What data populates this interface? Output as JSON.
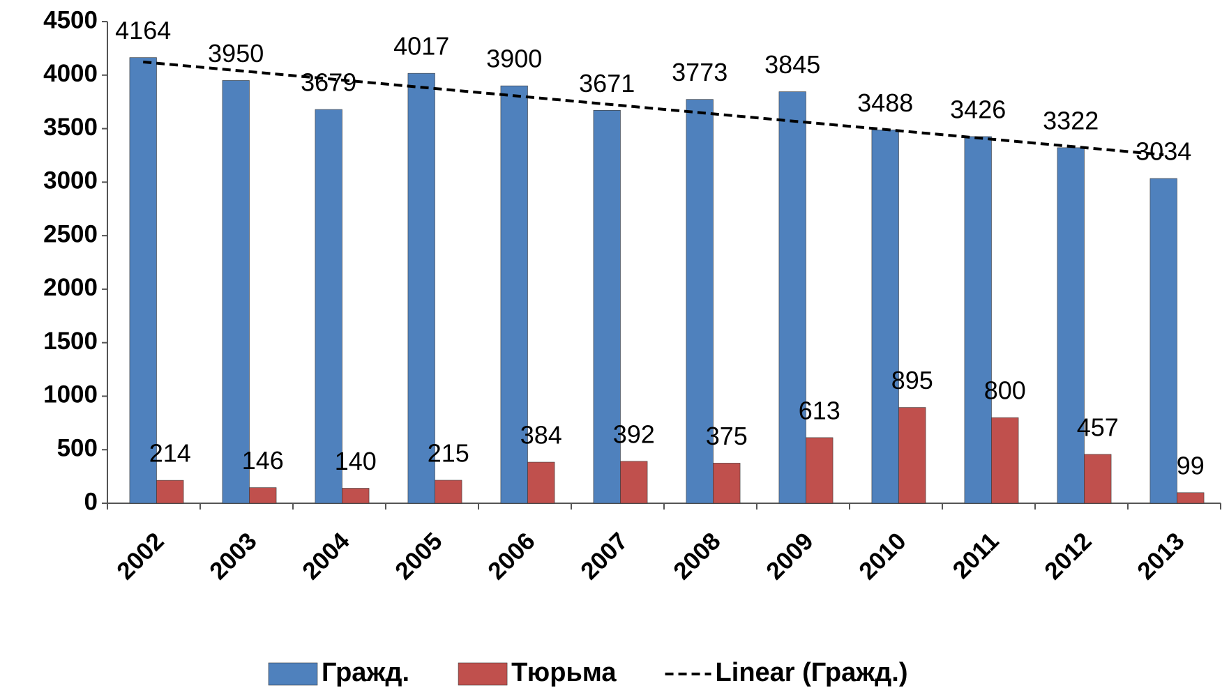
{
  "chart_data": {
    "type": "bar",
    "categories": [
      "2002",
      "2003",
      "2004",
      "2005",
      "2006",
      "2007",
      "2008",
      "2009",
      "2010",
      "2011",
      "2012",
      "2013"
    ],
    "series": [
      {
        "name": "Гражд.",
        "color": "#4f81bd",
        "values": [
          4164,
          3950,
          3679,
          4017,
          3900,
          3671,
          3773,
          3845,
          3488,
          3426,
          3322,
          3034
        ],
        "trendline": {
          "type": "linear",
          "name": "Linear (Гражд.)",
          "color": "#000000"
        }
      },
      {
        "name": "Тюрьма",
        "color": "#c0504d",
        "values": [
          214,
          146,
          140,
          215,
          384,
          392,
          375,
          613,
          895,
          800,
          457,
          99
        ]
      }
    ],
    "ylim": [
      0,
      4500
    ],
    "yticks": [
      0,
      500,
      1000,
      1500,
      2000,
      2500,
      3000,
      3500,
      4000,
      4500
    ],
    "grid": false,
    "legend": "bottom"
  }
}
